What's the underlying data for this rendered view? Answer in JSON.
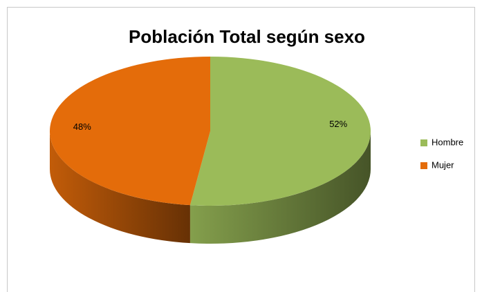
{
  "chart_data": {
    "type": "pie",
    "title": "Población Total según sexo",
    "categories": [
      "Hombre",
      "Mujer"
    ],
    "values": [
      52,
      48
    ],
    "value_labels": [
      "52%",
      "48%"
    ],
    "colors": [
      "#9bbb59",
      "#e46c0a"
    ],
    "legend": "right",
    "three_d": true
  }
}
